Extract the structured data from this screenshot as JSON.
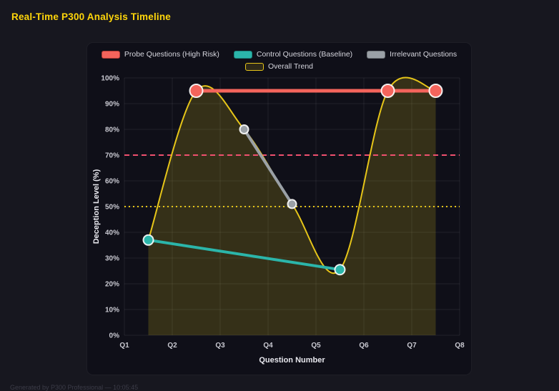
{
  "page": {
    "title": "Real-Time P300 Analysis Timeline",
    "footer": "Generated by P300 Professional — 10:05:45"
  },
  "colors": {
    "background": "#17171f",
    "panel": "#0f0f18",
    "title": "#ffd60a",
    "grid": "rgba(255,255,255,0.08)",
    "tick_text": "#c9c9d1",
    "axis_title_text": "#e8e8ee",
    "area_fill": "rgba(230,197,25,0.18)"
  },
  "chart_data": {
    "type": "line",
    "title": "Real-Time P300 Analysis Timeline",
    "xlabel": "Question Number",
    "ylabel": "Deception Level (%)",
    "x_ticks": [
      "Q1",
      "Q2",
      "Q3",
      "Q4",
      "Q5",
      "Q6",
      "Q7",
      "Q8"
    ],
    "y_ticks": [
      "0%",
      "10%",
      "20%",
      "30%",
      "40%",
      "50%",
      "60%",
      "70%",
      "80%",
      "90%",
      "100%"
    ],
    "xlim": [
      1,
      8
    ],
    "ylim": [
      0,
      100
    ],
    "grid": true,
    "legend_position": "top",
    "legend_rows": [
      [
        "Probe Questions (High Risk)",
        "Control Questions (Baseline)",
        "Irrelevant Questions"
      ],
      [
        "Overall Trend"
      ]
    ],
    "series": [
      {
        "name": "Overall Trend",
        "color": "#e6c519",
        "swatch_fill": "rgba(230,197,25,0.15)",
        "swatch_border": "#e6c519",
        "x": [
          1.5,
          2.5,
          3.5,
          4.5,
          5.5,
          6.5,
          7.5
        ],
        "y": [
          37,
          95,
          80,
          51,
          25.5,
          95,
          95
        ],
        "line_width": 2,
        "marker_r": 0,
        "smooth": true,
        "fill": true
      },
      {
        "name": "Control Questions (Baseline)",
        "color": "#2bb5aa",
        "swatch_fill": "#2bb5aa",
        "swatch_border": "#1b847c",
        "x": [
          1.5,
          5.5
        ],
        "y": [
          37,
          25.5
        ],
        "line_width": 4,
        "marker_r": 7,
        "smooth": false,
        "fill": false
      },
      {
        "name": "Irrelevant Questions",
        "color": "#9aa0a6",
        "swatch_fill": "#9aa0a6",
        "swatch_border": "#6f7478",
        "x": [
          3.5,
          4.5
        ],
        "y": [
          80,
          51
        ],
        "line_width": 4,
        "marker_r": 6,
        "smooth": false,
        "fill": false
      },
      {
        "name": "Probe Questions (High Risk)",
        "color": "#f4645c",
        "swatch_fill": "#f4645c",
        "swatch_border": "#b03a34",
        "x": [
          2.5,
          6.5,
          7.5
        ],
        "y": [
          95,
          95,
          95
        ],
        "line_width": 5,
        "marker_r": 9,
        "smooth": false,
        "fill": false
      }
    ],
    "thresholds": [
      {
        "y": 70,
        "color": "#f0506e",
        "style": "dashed"
      },
      {
        "y": 50,
        "color": "#e6c519",
        "style": "dotted"
      }
    ]
  }
}
